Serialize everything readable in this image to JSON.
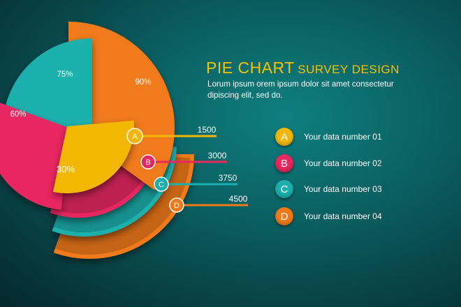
{
  "heading": {
    "title_main": "PIE CHART",
    "title_sub": "SURVEY DESIGN",
    "description": "Lorum ipsum orem ipsum dolor sit amet consectetur dipiscing elit, sed do."
  },
  "colors": {
    "yellow": "#f2b705",
    "pink": "#e8285e",
    "teal": "#1bb0ad",
    "orange": "#f07a1a",
    "title": "#f5c200"
  },
  "legend": [
    {
      "letter": "A",
      "label": "Your data number 01",
      "color": "#f2b705"
    },
    {
      "letter": "B",
      "label": "Your data number 02",
      "color": "#e8285e"
    },
    {
      "letter": "C",
      "label": "Your data number 03",
      "color": "#1bb0ad"
    },
    {
      "letter": "D",
      "label": "Your data number 04",
      "color": "#f07a1a"
    }
  ],
  "chart_data": {
    "type": "pie",
    "slices": [
      {
        "label": "30%",
        "value": 30,
        "color": "#f2b705"
      },
      {
        "label": "60%",
        "value": 60,
        "color": "#e8285e"
      },
      {
        "label": "75%",
        "value": 75,
        "color": "#1bb0ad"
      },
      {
        "label": "90%",
        "value": 90,
        "color": "#f07a1a"
      }
    ],
    "rings": [
      {
        "letter": "A",
        "value": 1500,
        "value_label": "1500",
        "color": "#f2b705"
      },
      {
        "letter": "B",
        "value": 3000,
        "value_label": "3000",
        "color": "#e8285e"
      },
      {
        "letter": "C",
        "value": 3750,
        "value_label": "3750",
        "color": "#1bb0ad"
      },
      {
        "letter": "D",
        "value": 4500,
        "value_label": "4500",
        "color": "#f07a1a"
      }
    ]
  }
}
